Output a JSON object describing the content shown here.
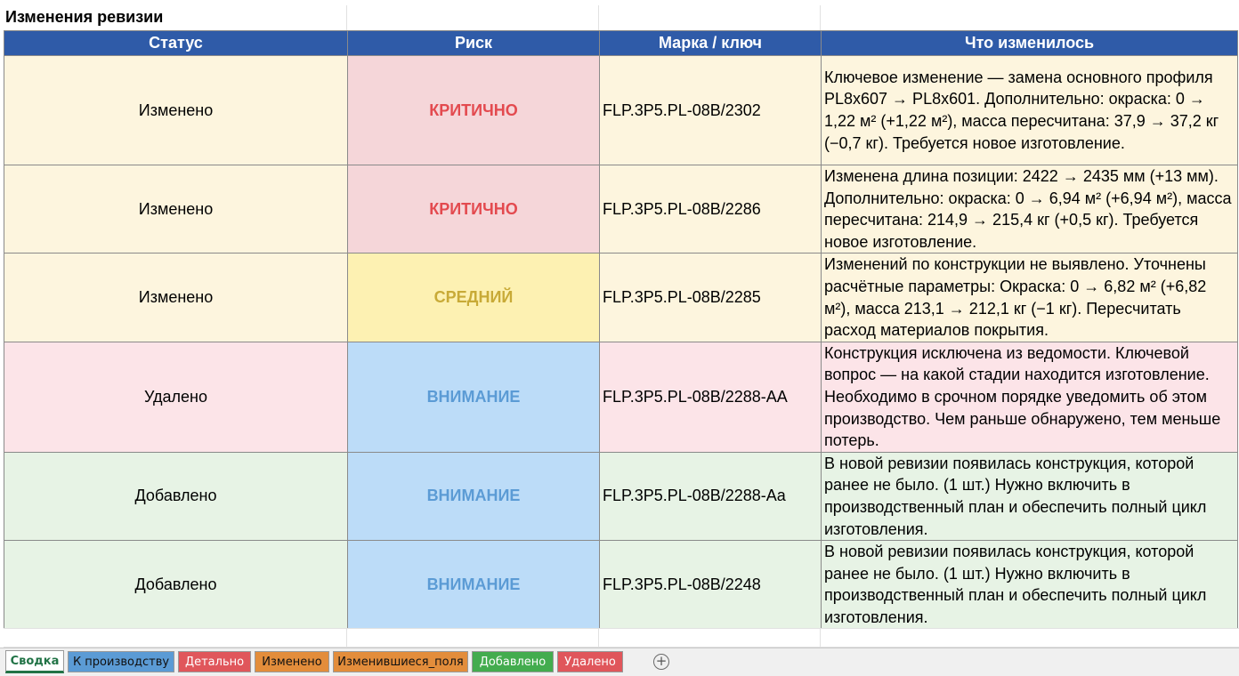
{
  "title": "Изменения ревизии",
  "columns": {
    "status": "Статус",
    "risk": "Риск",
    "mark": "Марка / ключ",
    "change": "Что изменилось"
  },
  "rows": [
    {
      "status": "Изменено",
      "risk": "КРИТИЧНО",
      "mark": "FLP.3P5.PL-08B/2302",
      "change": "Ключевое изменение — замена основного профиля PL8x607 → PL8x601. Дополнительно: окраска: 0 → 1,22 м² (+1,22 м²), масса пересчитана: 37,9 → 37,2 кг (−0,7 кг). Требуется новое изготовление."
    },
    {
      "status": "Изменено",
      "risk": "КРИТИЧНО",
      "mark": "FLP.3P5.PL-08B/2286",
      "change": "Изменена длина позиции: 2422 → 2435 мм (+13 мм). Дополнительно: окраска: 0 → 6,94 м² (+6,94 м²), масса пересчитана: 214,9 → 215,4 кг (+0,5 кг). Требуется новое изготовление."
    },
    {
      "status": "Изменено",
      "risk": "СРЕДНИЙ",
      "mark": "FLP.3P5.PL-08B/2285",
      "change": "Изменений по конструкции не выявлено. Уточнены расчётные параметры: Окраска: 0 → 6,82 м² (+6,82 м²), масса 213,1 → 212,1 кг (−1 кг). Пересчитать расход материалов покрытия."
    },
    {
      "status": "Удалено",
      "risk": "ВНИМАНИЕ",
      "mark": "FLP.3P5.PL-08B/2288-AA",
      "change": "Конструкция исключена из ведомости. Ключевой вопрос — на какой стадии находится изготовление. Необходимо в срочном порядке уведомить об этом производство. Чем раньше обнаружено, тем меньше потерь."
    },
    {
      "status": "Добавлено",
      "risk": "ВНИМАНИЕ",
      "mark": "FLP.3P5.PL-08B/2288-Aa",
      "change": "В новой ревизии появилась конструкция, которой ранее не было. (1 шт.) Нужно включить в производственный план и обеспечить полный цикл изготовления."
    },
    {
      "status": "Добавлено",
      "risk": "ВНИМАНИЕ",
      "mark": "FLP.3P5.PL-08B/2248",
      "change": "В новой ревизии появилась конструкция, которой ранее не было. (1 шт.) Нужно включить в производственный план и обеспечить полный цикл изготовления."
    }
  ],
  "tabs": [
    {
      "label": "Сводка",
      "active": true
    },
    {
      "label": "К производству"
    },
    {
      "label": "Детально"
    },
    {
      "label": "Изменено"
    },
    {
      "label": "Изменившиеся_поля"
    },
    {
      "label": "Добавлено"
    },
    {
      "label": "Удалено"
    }
  ],
  "add_sheet_icon": "plus-circle-icon",
  "colors": {
    "header_bg": "#2f5ba8",
    "changed_bg": "#fdf5de",
    "deleted_bg": "#fce4e8",
    "added_bg": "#e7f3e5",
    "risk_critical_bg": "#f5d6d9",
    "risk_critical_text": "#e34a4f",
    "risk_medium_bg": "#fdf1b2",
    "risk_medium_text": "#c8aa37",
    "risk_attention_bg": "#bcdcf8",
    "risk_attention_text": "#5b9bd5",
    "tab_k_proizvodstvu": "#5b9bd5",
    "tab_detalno": "#e0565b",
    "tab_izmeneno": "#e38d3b",
    "tab_izmenivshiesya": "#e38d3b",
    "tab_dobavleno": "#43ac4e",
    "tab_udaleno": "#e0565b"
  }
}
